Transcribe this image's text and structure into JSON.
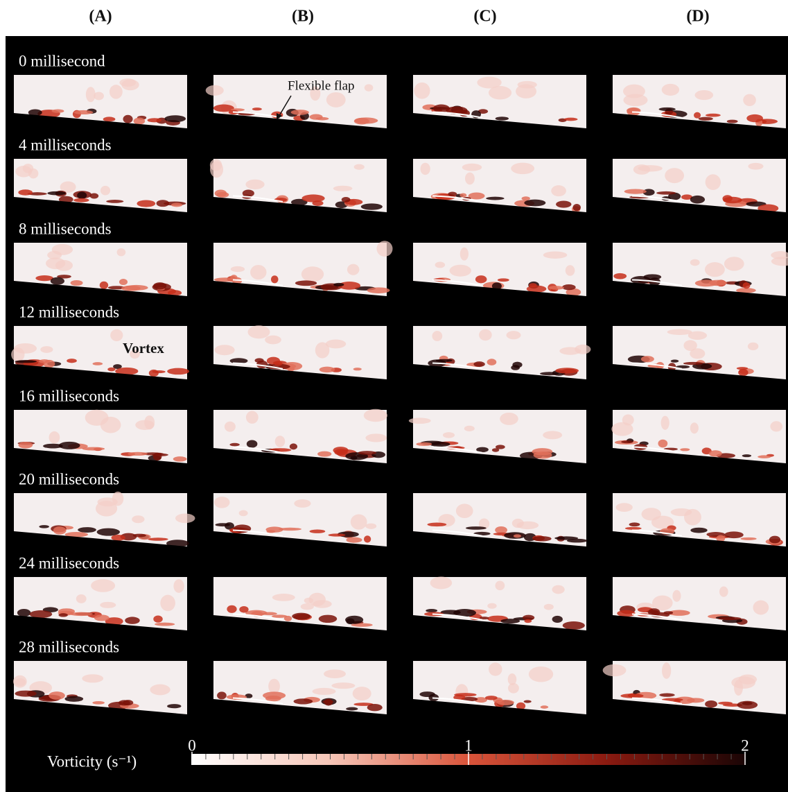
{
  "column_labels": [
    "(A)",
    "(B)",
    "(C)",
    "(D)"
  ],
  "row_labels": [
    "0 millisecond",
    "4 milliseconds",
    "8 milliseconds",
    "12 milliseconds",
    "16 milliseconds",
    "20 milliseconds",
    "24 milliseconds",
    "28 milliseconds"
  ],
  "annotations": {
    "flap": "Flexible flap",
    "vortex": "Vortex"
  },
  "colorbar": {
    "label": "Vorticity (s⁻¹)",
    "ticks": [
      0,
      1,
      2
    ]
  }
}
